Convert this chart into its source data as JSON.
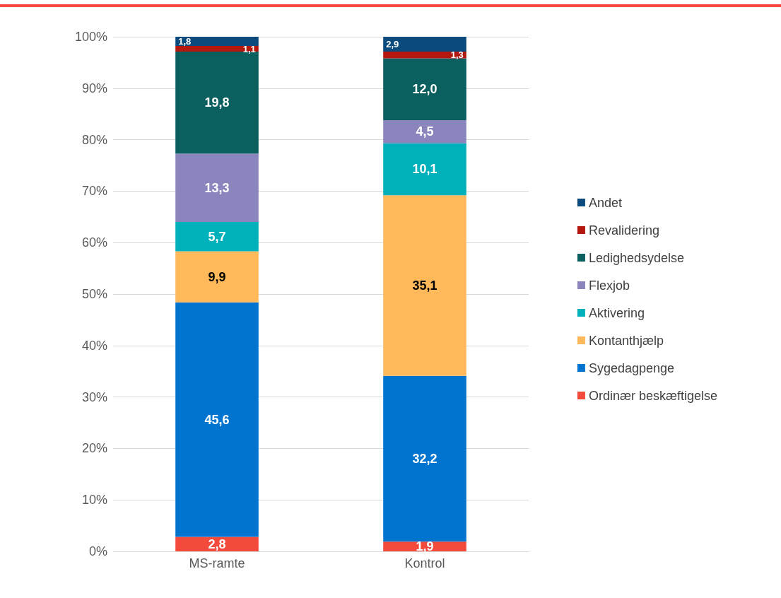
{
  "chart_data": {
    "type": "bar",
    "stacked": true,
    "categories": [
      "MS-ramte",
      "Kontrol"
    ],
    "series": [
      {
        "name": "Ordinær beskæftigelse",
        "color": "#f44a3c",
        "values": [
          2.8,
          1.9
        ],
        "value_labels": [
          "2,8",
          "1,9"
        ]
      },
      {
        "name": "Sygedagpenge",
        "color": "#0074cf",
        "values": [
          45.6,
          32.2
        ],
        "value_labels": [
          "45,6",
          "32,2"
        ]
      },
      {
        "name": "Kontanthjælp",
        "color": "#ffb95a",
        "values": [
          9.9,
          35.1
        ],
        "value_labels": [
          "9,9",
          "35,1"
        ]
      },
      {
        "name": "Aktivering",
        "color": "#00b0bb",
        "values": [
          5.7,
          10.1
        ],
        "value_labels": [
          "5,7",
          "10,1"
        ]
      },
      {
        "name": "Flexjob",
        "color": "#8b85bd",
        "values": [
          13.3,
          4.5
        ],
        "value_labels": [
          "13,3",
          "4,5"
        ]
      },
      {
        "name": "Ledighedsydelse",
        "color": "#0b5f5f",
        "values": [
          19.8,
          12.0
        ],
        "value_labels": [
          "19,8",
          "12,0"
        ]
      },
      {
        "name": "Revalidering",
        "color": "#b4170e",
        "values": [
          1.1,
          1.3
        ],
        "value_labels": [
          "1,1",
          "1,3"
        ]
      },
      {
        "name": "Andet",
        "color": "#0b4a7c",
        "values": [
          1.8,
          2.9
        ],
        "value_labels": [
          "1,8",
          "2,9"
        ]
      }
    ],
    "ylim": [
      0,
      100
    ],
    "yticks": [
      {
        "value": 0,
        "label": "0%"
      },
      {
        "value": 10,
        "label": "10%"
      },
      {
        "value": 20,
        "label": "20%"
      },
      {
        "value": 30,
        "label": "30%"
      },
      {
        "value": 40,
        "label": "40%"
      },
      {
        "value": 50,
        "label": "50%"
      },
      {
        "value": 60,
        "label": "60%"
      },
      {
        "value": 70,
        "label": "70%"
      },
      {
        "value": 80,
        "label": "80%"
      },
      {
        "value": 90,
        "label": "90%"
      },
      {
        "value": 100,
        "label": "100%"
      }
    ],
    "grid": "y",
    "legend": "right"
  }
}
